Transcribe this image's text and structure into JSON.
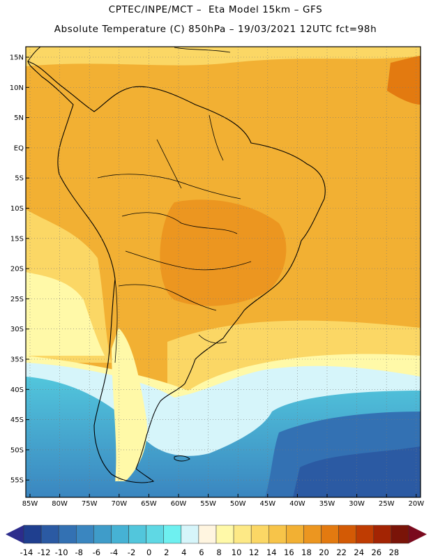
{
  "header": {
    "line1": "CPTEC/INPE/MCT –  Eta Model 15km – GFS",
    "line2": "Absolute Temperature (C) 850hPa – 19/03/2021 12UTC fct=98h"
  },
  "map": {
    "latitudes": [
      "15N",
      "10N",
      "5N",
      "EQ",
      "5S",
      "10S",
      "15S",
      "20S",
      "25S",
      "30S",
      "35S",
      "40S",
      "45S",
      "50S",
      "55S"
    ],
    "longitudes": [
      "85W",
      "80W",
      "75W",
      "70W",
      "65W",
      "60W",
      "55W",
      "50W",
      "45W",
      "40W",
      "35W",
      "30W",
      "25W",
      "20W"
    ]
  },
  "colorbar": {
    "labels": [
      "-14",
      "-12",
      "-10",
      "-8",
      "-6",
      "-4",
      "-2",
      "0",
      "2",
      "4",
      "6",
      "8",
      "10",
      "12",
      "14",
      "16",
      "18",
      "20",
      "22",
      "24",
      "26",
      "28"
    ],
    "colors": [
      "#1f3f8f",
      "#2b5aa3",
      "#3371b3",
      "#3a86c0",
      "#3f9cc9",
      "#46b2d4",
      "#52c6dc",
      "#5fd8e4",
      "#6ef0f0",
      "#d6f5fa",
      "#fff5e0",
      "#fff9a8",
      "#fde986",
      "#fbd765",
      "#f7c449",
      "#f2b033",
      "#ec9620",
      "#e37a10",
      "#d35a05",
      "#bf3c02",
      "#a32403",
      "#7a1408"
    ],
    "under_color": "#2c2c8c",
    "over_color": "#7a0a1e"
  }
}
